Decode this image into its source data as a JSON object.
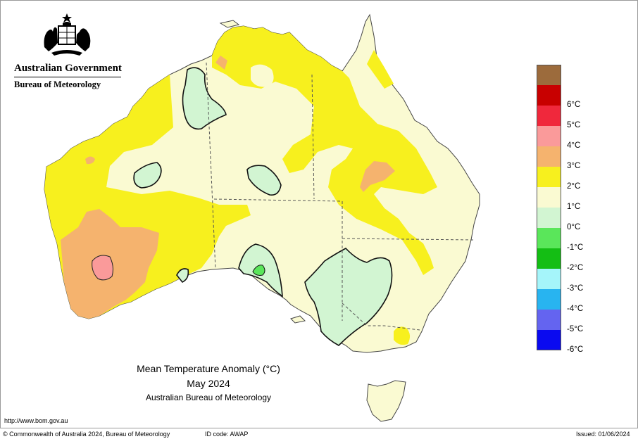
{
  "branding": {
    "government": "Australian Government",
    "agency": "Bureau of Meteorology"
  },
  "map": {
    "title": "Mean Temperature Anomaly (°C)",
    "period": "May 2024",
    "source": "Australian Bureau of Meteorology",
    "region": "Australia"
  },
  "legend": {
    "items": [
      {
        "label": "",
        "color": "#9c6b3c"
      },
      {
        "label": "6°C",
        "color": "#c80000"
      },
      {
        "label": "5°C",
        "color": "#f0283c"
      },
      {
        "label": "4°C",
        "color": "#fa9a9a"
      },
      {
        "label": "3°C",
        "color": "#f5b36e"
      },
      {
        "label": "2°C",
        "color": "#f7f01e"
      },
      {
        "label": "1°C",
        "color": "#fafad2"
      },
      {
        "label": "0°C",
        "color": "#d2f5d2"
      },
      {
        "label": "-1°C",
        "color": "#5ae65a"
      },
      {
        "label": "-2°C",
        "color": "#14be14"
      },
      {
        "label": "-3°C",
        "color": "#a5f5fa"
      },
      {
        "label": "-4°C",
        "color": "#28b4f0"
      },
      {
        "label": "-5°C",
        "color": "#6464f0"
      },
      {
        "label": "-6°C",
        "color": "#0a0af0"
      }
    ]
  },
  "footer": {
    "url": "http://www.bom.gov.au",
    "copyright": "© Commonwealth of Australia 2024, Bureau of Meteorology",
    "id_code": "ID code: AWAP",
    "issued": "Issued: 01/06/2024"
  }
}
